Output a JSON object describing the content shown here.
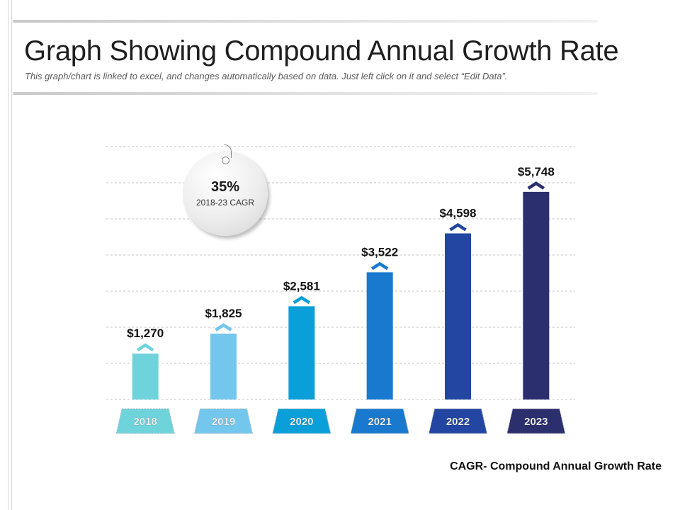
{
  "header": {
    "title": "Graph Showing Compound Annual Growth Rate",
    "subtitle": "This graph/chart is linked to excel, and changes automatically based on data.  Just left click on it and select “Edit Data”."
  },
  "badge": {
    "value": "35%",
    "label": "2018-23 CAGR"
  },
  "footnote": "CAGR- Compound Annual Growth Rate",
  "chart_data": {
    "type": "bar",
    "title": "",
    "xlabel": "",
    "ylabel": "",
    "categories": [
      "2018",
      "2019",
      "2020",
      "2021",
      "2022",
      "2023"
    ],
    "values": [
      1270,
      1825,
      2581,
      3522,
      4598,
      5748
    ],
    "value_labels": [
      "$1,270",
      "$1,825",
      "$2,581",
      "$3,522",
      "$4,598",
      "$5,748"
    ],
    "colors": [
      "#6fd3dc",
      "#74c7ec",
      "#0a9fd8",
      "#1879ce",
      "#2346a2",
      "#2b2f6d"
    ],
    "ylim": [
      0,
      7000
    ],
    "grid": true,
    "gridlines": 8
  }
}
